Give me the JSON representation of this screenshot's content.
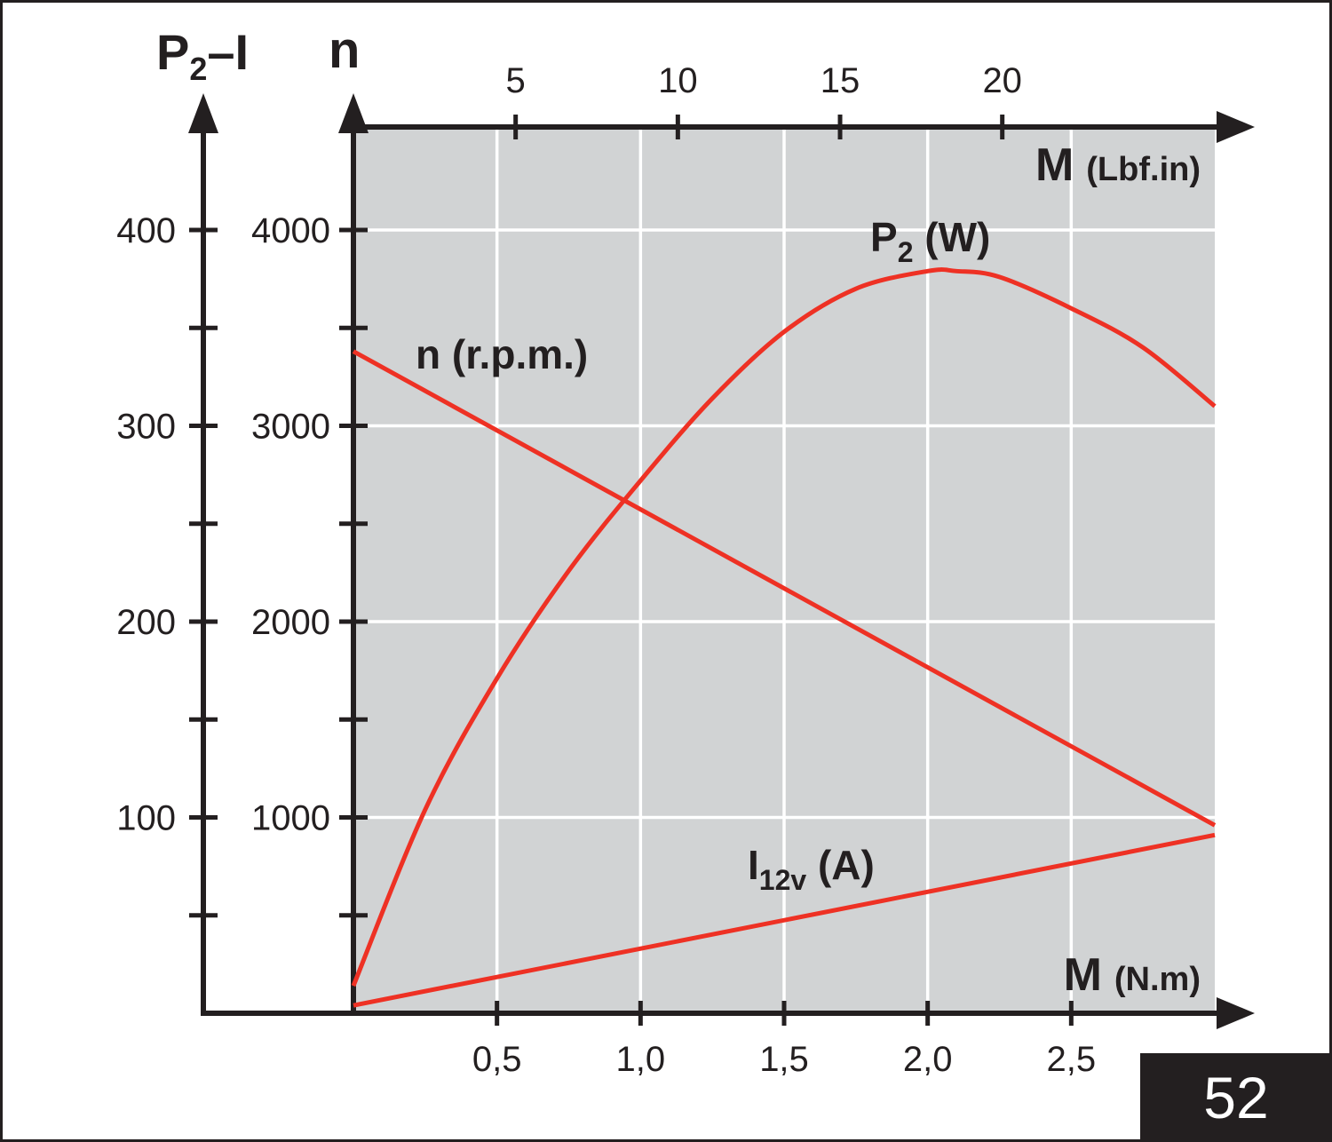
{
  "figure_number": "52",
  "chart_data": {
    "type": "line",
    "x_bottom": {
      "label": "M",
      "unit": "(N.m)",
      "ticks": [
        "0,5",
        "1,0",
        "1,5",
        "2,0",
        "2,5"
      ],
      "tick_values": [
        0.5,
        1.0,
        1.5,
        2.0,
        2.5
      ],
      "range": [
        0,
        3.0
      ]
    },
    "x_top": {
      "label": "M",
      "unit": "(Lbf.in)",
      "ticks": [
        "5",
        "10",
        "15",
        "20"
      ],
      "tick_values": [
        5,
        10,
        15,
        20
      ],
      "range": [
        0,
        26.55
      ]
    },
    "y_left": {
      "label_main": "P",
      "label_sub": "2",
      "label_tail": "–I",
      "ticks": [
        "100",
        "200",
        "300",
        "400"
      ],
      "tick_values": [
        100,
        200,
        300,
        400
      ],
      "range": [
        0,
        400
      ]
    },
    "y_right": {
      "label": "n",
      "ticks": [
        "1000",
        "2000",
        "3000",
        "4000"
      ],
      "tick_values": [
        1000,
        2000,
        3000,
        4000
      ],
      "range": [
        0,
        4000
      ]
    },
    "grid": true,
    "background": "#d1d3d4",
    "line_color": "#ee3124",
    "series": [
      {
        "name": "n (r.p.m.)",
        "axis": "n",
        "x": [
          0,
          3.0
        ],
        "y": [
          3380,
          960
        ]
      },
      {
        "name": "P2 (W)",
        "label_main": "P",
        "label_sub": "2",
        "label_tail": " (W)",
        "axis": "P2-I",
        "x": [
          0,
          0.25,
          0.5,
          0.75,
          1.0,
          1.25,
          1.5,
          1.75,
          2.0,
          2.1,
          2.25,
          2.5,
          2.75,
          3.0
        ],
        "y": [
          14,
          104,
          171,
          226,
          272,
          314,
          348,
          370,
          379,
          379,
          376,
          360,
          340,
          310
        ]
      },
      {
        "name": "I12v (A)",
        "label_main": "I",
        "label_sub": "12v",
        "label_tail": " (A)",
        "axis": "P2-I",
        "x": [
          0,
          3.0
        ],
        "y": [
          4,
          91
        ]
      }
    ]
  }
}
